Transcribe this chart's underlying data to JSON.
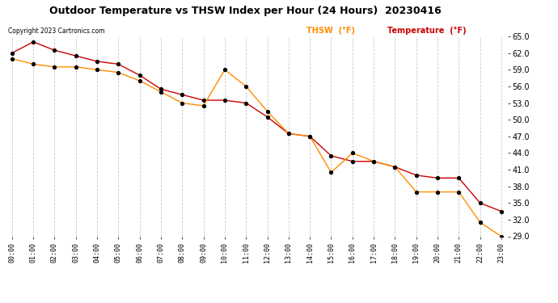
{
  "title": "Outdoor Temperature vs THSW Index per Hour (24 Hours)  20230416",
  "copyright": "Copyright 2023 Cartronics.com",
  "legend_thsw": "THSW  (°F)",
  "legend_temp": "Temperature  (°F)",
  "x_labels": [
    "00:00",
    "01:00",
    "02:00",
    "03:00",
    "04:00",
    "05:00",
    "06:00",
    "07:00",
    "08:00",
    "09:00",
    "10:00",
    "11:00",
    "12:00",
    "13:00",
    "14:00",
    "15:00",
    "16:00",
    "17:00",
    "18:00",
    "19:00",
    "20:00",
    "21:00",
    "22:00",
    "23:00"
  ],
  "temperature": [
    62.0,
    64.0,
    62.5,
    61.5,
    60.5,
    60.0,
    58.0,
    55.5,
    54.5,
    53.5,
    53.5,
    53.0,
    50.5,
    47.5,
    47.0,
    43.5,
    42.5,
    42.5,
    41.5,
    40.0,
    39.5,
    39.5,
    35.0,
    33.5
  ],
  "thsw": [
    61.0,
    60.0,
    59.5,
    59.5,
    59.0,
    58.5,
    57.0,
    55.0,
    53.0,
    52.5,
    59.0,
    56.0,
    51.5,
    47.5,
    47.0,
    40.5,
    44.0,
    42.5,
    41.5,
    37.0,
    37.0,
    37.0,
    31.5,
    29.0
  ],
  "ylim": [
    29.0,
    65.0
  ],
  "yticks": [
    29.0,
    32.0,
    35.0,
    38.0,
    41.0,
    44.0,
    47.0,
    50.0,
    53.0,
    56.0,
    59.0,
    62.0,
    65.0
  ],
  "temp_color": "#cc0000",
  "thsw_color": "#ff8c00",
  "marker_color": "#000000",
  "bg_color": "#ffffff",
  "grid_color": "#c8c8c8",
  "title_color": "#000000",
  "copyright_color": "#000000",
  "legend_thsw_color": "#ff8c00",
  "legend_temp_color": "#cc0000"
}
